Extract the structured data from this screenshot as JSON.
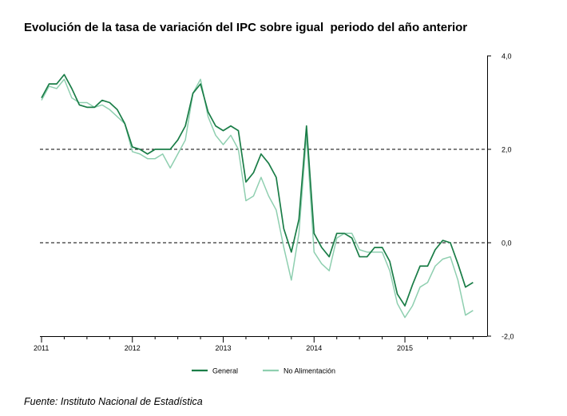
{
  "title": "Evolución de la tasa de variación del IPC sobre igual  periodo del año anterior",
  "source": "Fuente: Instituto Nacional de Estadística",
  "colors": {
    "general": "#1a7d47",
    "no_alimentacion": "#8fcfb0",
    "axis": "#000000",
    "reference_line": "#000000"
  },
  "chart_data": {
    "type": "line",
    "title": "Evolución de la tasa de variación del IPC sobre igual  periodo del año anterior",
    "xlabel": "",
    "ylabel": "",
    "y_axis_side": "right",
    "ylim": [
      -2.0,
      4.0
    ],
    "y_ticks": [
      4.0,
      2.0,
      0.0,
      -2.0
    ],
    "y_tick_labels": [
      "4,0",
      "2,0",
      "0,0",
      "-2,0"
    ],
    "reference_lines": [
      2.0,
      0.0
    ],
    "grid": false,
    "legend": "bottom",
    "x_start": "2011-01",
    "x_tick_labels": [
      "2011",
      "2012",
      "2013",
      "2014",
      "2015"
    ],
    "months": [
      "2011-01",
      "2011-02",
      "2011-03",
      "2011-04",
      "2011-05",
      "2011-06",
      "2011-07",
      "2011-08",
      "2011-09",
      "2011-10",
      "2011-11",
      "2011-12",
      "2012-01",
      "2012-02",
      "2012-03",
      "2012-04",
      "2012-05",
      "2012-06",
      "2012-07",
      "2012-08",
      "2012-09",
      "2012-10",
      "2012-11",
      "2012-12",
      "2013-01",
      "2013-02",
      "2013-03",
      "2013-04",
      "2013-05",
      "2013-06",
      "2013-07",
      "2013-08",
      "2013-09",
      "2013-10",
      "2013-11",
      "2013-12",
      "2014-01",
      "2014-02",
      "2014-03",
      "2014-04",
      "2014-05",
      "2014-06",
      "2014-07",
      "2014-08",
      "2014-09",
      "2014-10",
      "2014-11",
      "2014-12",
      "2015-01",
      "2015-02",
      "2015-03",
      "2015-04",
      "2015-05",
      "2015-06",
      "2015-07",
      "2015-08",
      "2015-09",
      "2015-10"
    ],
    "series": [
      {
        "name": "General",
        "values": [
          3.1,
          3.4,
          3.4,
          3.6,
          3.3,
          2.95,
          2.9,
          2.9,
          3.05,
          3.0,
          2.85,
          2.55,
          2.05,
          2.0,
          1.9,
          2.0,
          2.0,
          2.0,
          2.2,
          2.5,
          3.2,
          3.4,
          2.8,
          2.5,
          2.4,
          2.5,
          2.4,
          1.3,
          1.5,
          1.9,
          1.7,
          1.4,
          0.3,
          -0.2,
          0.5,
          2.5,
          0.2,
          -0.1,
          -0.3,
          0.2,
          0.2,
          0.1,
          -0.3,
          -0.3,
          -0.1,
          -0.1,
          -0.4,
          -1.1,
          -1.35,
          -0.9,
          -0.5,
          -0.5,
          -0.15,
          0.05,
          0.0,
          -0.45,
          -0.95,
          -0.85
        ]
      },
      {
        "name": "No Alimentación",
        "values": [
          3.05,
          3.35,
          3.3,
          3.5,
          3.1,
          3.0,
          3.0,
          2.9,
          2.95,
          2.85,
          2.7,
          2.55,
          1.95,
          1.9,
          1.8,
          1.8,
          1.9,
          1.6,
          1.9,
          2.2,
          3.2,
          3.5,
          2.7,
          2.3,
          2.1,
          2.3,
          2.0,
          0.9,
          1.0,
          1.4,
          1.0,
          0.7,
          -0.1,
          -0.8,
          0.2,
          2.3,
          -0.2,
          -0.45,
          -0.6,
          0.1,
          0.2,
          0.2,
          -0.15,
          -0.2,
          -0.2,
          -0.2,
          -0.6,
          -1.3,
          -1.6,
          -1.35,
          -0.95,
          -0.85,
          -0.5,
          -0.35,
          -0.3,
          -0.8,
          -1.55,
          -1.45
        ]
      }
    ]
  }
}
